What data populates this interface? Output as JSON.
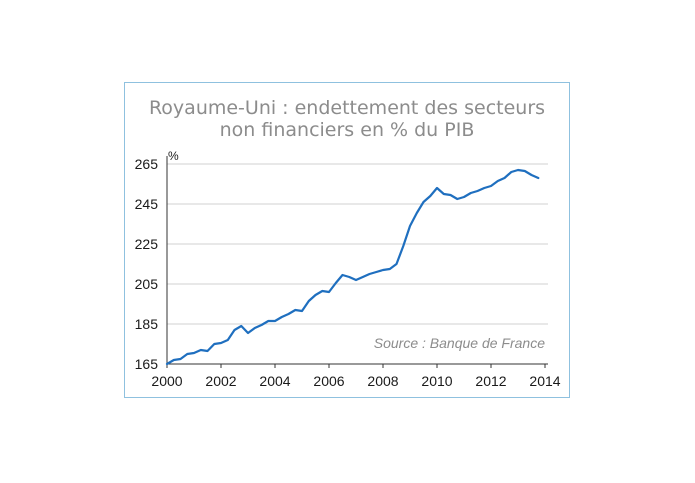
{
  "chart_data": {
    "type": "line",
    "title_line1": "Royaume-Uni : endettement des secteurs",
    "title_line2": "non financiers en % du PIB",
    "unit": "%",
    "source": "Source : Banque de France",
    "ylim": [
      165,
      265
    ],
    "yticks": [
      165,
      185,
      205,
      225,
      245,
      265
    ],
    "xlim": [
      2000,
      2014
    ],
    "xticks": [
      2000,
      2002,
      2004,
      2006,
      2008,
      2010,
      2012,
      2014
    ],
    "grid": true,
    "line_color": "#1f6fbf",
    "series": [
      {
        "x": [
          2000.0,
          2000.25,
          2000.5,
          2000.75,
          2001.0,
          2001.25,
          2001.5,
          2001.75,
          2002.0,
          2002.25,
          2002.5,
          2002.75,
          2003.0,
          2003.25,
          2003.5,
          2003.75,
          2004.0,
          2004.25,
          2004.5,
          2004.75,
          2005.0,
          2005.25,
          2005.5,
          2005.75,
          2006.0,
          2006.25,
          2006.5,
          2006.75,
          2007.0,
          2007.25,
          2007.5,
          2007.75,
          2008.0,
          2008.25,
          2008.5,
          2008.75,
          2009.0,
          2009.25,
          2009.5,
          2009.75,
          2010.0,
          2010.25,
          2010.5,
          2010.75,
          2011.0,
          2011.25,
          2011.5,
          2011.75,
          2012.0,
          2012.25,
          2012.5,
          2012.75,
          2013.0,
          2013.25,
          2013.5,
          2013.75
        ],
        "values": [
          165.0,
          167.0,
          167.5,
          170.0,
          170.5,
          172.0,
          171.5,
          175.0,
          175.5,
          177.0,
          182.0,
          184.0,
          180.5,
          183.0,
          184.5,
          186.5,
          186.5,
          188.5,
          190.0,
          192.0,
          191.5,
          196.5,
          199.5,
          201.5,
          201.0,
          205.5,
          209.5,
          208.5,
          207.0,
          208.5,
          210.0,
          211.0,
          212.0,
          212.5,
          215.0,
          224.0,
          234.0,
          240.5,
          246.0,
          249.0,
          253.0,
          250.0,
          249.5,
          247.5,
          248.5,
          250.5,
          251.5,
          253.0,
          254.0,
          256.5,
          258.0,
          261.0,
          262.0,
          261.5,
          259.5,
          258.0
        ]
      }
    ]
  }
}
